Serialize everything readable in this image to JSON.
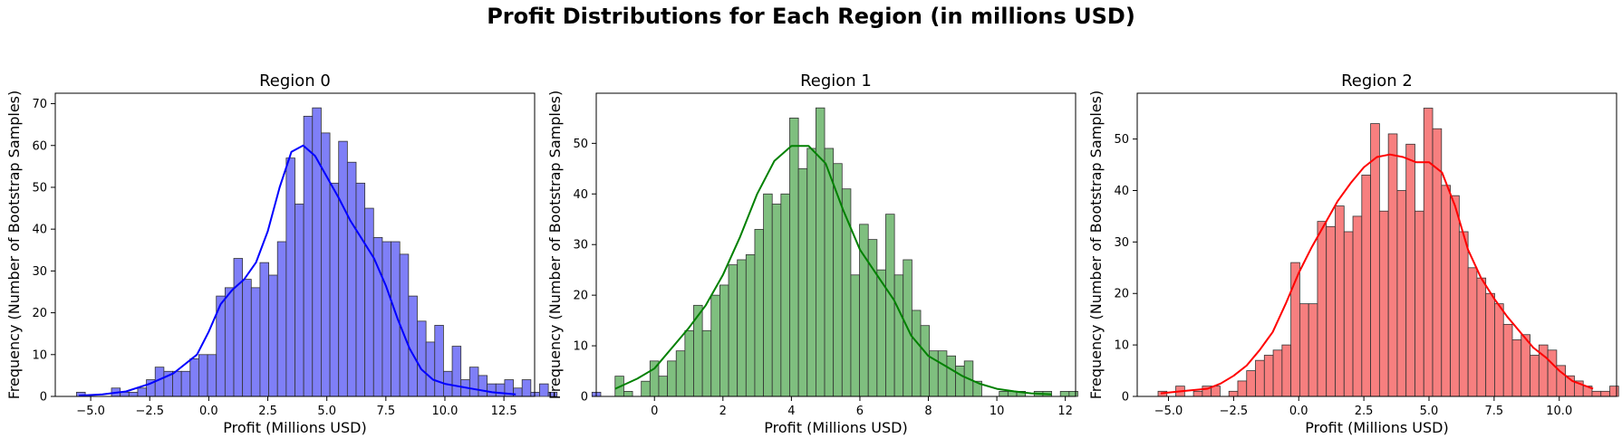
{
  "figure": {
    "suptitle": "Profit Distributions for Each Region (in millions USD)"
  },
  "chart_data": [
    {
      "type": "histogram",
      "title": "Region 0",
      "xlabel": "Profit (Millions USD)",
      "ylabel": "Frequency (Number of Bootstrap Samples)",
      "color": "#0000ff",
      "bar_color": "#7f7ff7",
      "xlim": [
        -6.5,
        13.8
      ],
      "ylim": [
        0,
        72.5
      ],
      "xticks": [
        -5.0,
        -2.5,
        0.0,
        2.5,
        5.0,
        7.5,
        10.0,
        12.5
      ],
      "xtick_labels": [
        "−5.0",
        "−2.5",
        "0.0",
        "2.5",
        "5.0",
        "7.5",
        "10.0",
        "12.5"
      ],
      "yticks": [
        0,
        10,
        20,
        30,
        40,
        50,
        60,
        70
      ],
      "bin_start": -5.6,
      "bin_width": 0.37,
      "counts": [
        1,
        0,
        0,
        0,
        2,
        1,
        1,
        2,
        4,
        7,
        6,
        6,
        6,
        9,
        10,
        10,
        24,
        26,
        33,
        28,
        26,
        32,
        29,
        37,
        57,
        46,
        67,
        69,
        63,
        51,
        61,
        56,
        51,
        45,
        38,
        37,
        37,
        34,
        24,
        18,
        13,
        17,
        6,
        12,
        4,
        7,
        5,
        3,
        3,
        4,
        2,
        4,
        1,
        3,
        1,
        0,
        0,
        0,
        0,
        1
      ],
      "kde_x": [
        -5.5,
        -4.5,
        -3.5,
        -2.5,
        -1.5,
        -0.5,
        0.0,
        0.5,
        1.0,
        1.5,
        2.0,
        2.5,
        3.0,
        3.5,
        4.0,
        4.5,
        5.0,
        5.5,
        6.0,
        6.5,
        7.0,
        7.5,
        8.0,
        8.5,
        9.0,
        9.5,
        10.0,
        11.0,
        12.0,
        13.0
      ],
      "kde_y": [
        0.2,
        0.5,
        1.2,
        3.0,
        5.5,
        10.0,
        15.5,
        22.0,
        25.5,
        28.0,
        32.0,
        39.5,
        50.0,
        58.5,
        60.0,
        57.5,
        52.5,
        47.5,
        42.0,
        37.5,
        33.0,
        26.5,
        18.5,
        11.5,
        6.5,
        4.0,
        3.0,
        2.0,
        1.0,
        0.5
      ]
    },
    {
      "type": "histogram",
      "title": "Region 1",
      "xlabel": "Profit (Millions USD)",
      "ylabel": "Frequency (Number of Bootstrap Samples)",
      "color": "#008000",
      "bar_color": "#7fbf7f",
      "xlim": [
        -1.7,
        12.3
      ],
      "ylim": [
        0,
        59.9
      ],
      "xticks": [
        0,
        2,
        4,
        6,
        8,
        10,
        12
      ],
      "xtick_labels": [
        "0",
        "2",
        "4",
        "6",
        "8",
        "10",
        "12"
      ],
      "yticks": [
        0,
        10,
        20,
        30,
        40,
        50
      ],
      "bin_start": -1.15,
      "bin_width": 0.255,
      "counts": [
        4,
        1,
        0,
        3,
        7,
        4,
        7,
        9,
        13,
        18,
        13,
        20,
        22,
        26,
        27,
        28,
        33,
        40,
        38,
        40,
        55,
        45,
        49,
        57,
        49,
        46,
        41,
        24,
        34,
        31,
        25,
        36,
        24,
        27,
        17,
        14,
        9,
        9,
        8,
        6,
        7,
        3,
        0,
        0,
        1,
        1,
        1,
        0,
        1,
        1,
        0,
        1,
        1
      ],
      "kde_x": [
        -1.15,
        -0.5,
        0.0,
        0.5,
        1.0,
        1.5,
        2.0,
        2.5,
        3.0,
        3.5,
        4.0,
        4.5,
        5.0,
        5.5,
        6.0,
        6.5,
        7.0,
        7.5,
        8.0,
        8.5,
        9.0,
        9.5,
        10.0,
        10.5,
        11.0,
        11.6
      ],
      "kde_y": [
        1.5,
        3.5,
        5.5,
        9.5,
        13.5,
        18.0,
        24.0,
        31.5,
        40.0,
        46.5,
        49.5,
        49.5,
        46.0,
        37.0,
        29.0,
        24.0,
        19.0,
        12.0,
        8.0,
        6.0,
        4.0,
        2.5,
        1.5,
        1.0,
        0.6,
        0.4
      ]
    },
    {
      "type": "histogram",
      "title": "Region 2",
      "xlabel": "Profit (Millions USD)",
      "ylabel": "Frequency (Number of Bootstrap Samples)",
      "color": "#ff0000",
      "bar_color": "#f77f7f",
      "xlim": [
        -6.2,
        12.2
      ],
      "ylim": [
        0,
        58.9
      ],
      "xticks": [
        -5.0,
        -2.5,
        0.0,
        2.5,
        5.0,
        7.5,
        10.0
      ],
      "xtick_labels": [
        "−5.0",
        "−2.5",
        "0.0",
        "2.5",
        "5.0",
        "7.5",
        "10.0"
      ],
      "yticks": [
        0,
        10,
        20,
        30,
        40,
        50
      ],
      "bin_start": -5.4,
      "bin_width": 0.34,
      "counts": [
        1,
        0,
        2,
        0,
        1,
        2,
        2,
        0,
        1,
        3,
        5,
        7,
        8,
        9,
        10,
        26,
        18,
        18,
        34,
        33,
        37,
        32,
        35,
        43,
        53,
        36,
        51,
        40,
        49,
        36,
        56,
        52,
        41,
        39,
        32,
        25,
        23,
        20,
        18,
        14,
        11,
        12,
        8,
        10,
        9,
        6,
        4,
        3,
        2,
        1,
        1,
        2
      ],
      "kde_x": [
        -5.3,
        -4.5,
        -3.5,
        -3.0,
        -2.5,
        -2.0,
        -1.5,
        -1.0,
        -0.5,
        0.0,
        0.5,
        1.0,
        1.5,
        2.0,
        2.5,
        3.0,
        3.5,
        4.0,
        4.5,
        5.0,
        5.5,
        6.0,
        6.5,
        7.0,
        7.5,
        8.0,
        8.5,
        9.0,
        9.5,
        10.0,
        10.5,
        11.3
      ],
      "kde_y": [
        0.6,
        1.0,
        1.5,
        2.5,
        4.0,
        6.0,
        9.0,
        12.5,
        18.0,
        24.0,
        29.0,
        33.5,
        38.0,
        41.5,
        44.5,
        46.5,
        47.0,
        46.5,
        45.5,
        45.5,
        43.5,
        37.0,
        28.5,
        23.0,
        19.0,
        15.5,
        12.5,
        9.5,
        7.5,
        5.0,
        3.0,
        1.5
      ]
    }
  ]
}
